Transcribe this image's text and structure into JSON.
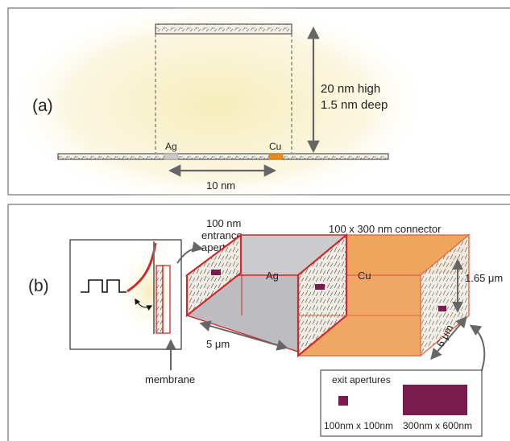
{
  "panel_a": {
    "label": "(a)",
    "height_label_line1": "20 nm high",
    "height_label_line2": "1.5 nm deep",
    "left_metal": "Ag",
    "right_metal": "Cu",
    "spacing_label": "10 nm"
  },
  "panel_b": {
    "label": "(b)",
    "entrance_label_line1": "100 nm",
    "entrance_label_line2": "entrance",
    "entrance_label_line3": "aperture",
    "connector_label": "100 x 300 nm connector",
    "left_chamber": "Ag",
    "right_chamber": "Cu",
    "height_label": "1.65 μm",
    "length_label": "5 μm",
    "depth_label": "6 μm",
    "membrane_label": "membrane",
    "exit_title": "exit apertures",
    "exit_small_label": "100nm x 100nm",
    "exit_large_label": "300nm x 600nm"
  },
  "colors": {
    "glow": "#f7efc0",
    "membrane_fill": "#f3efe6",
    "wall_red": "#cf2a2a",
    "silver_chamber": "#c9c9cc",
    "copper_chamber": "#efa35a",
    "aperture_purple": "#7a1b50",
    "ag_dot": "#c9c9c9",
    "cu_dot": "#e88a1e",
    "arrow_gray": "#666666"
  }
}
